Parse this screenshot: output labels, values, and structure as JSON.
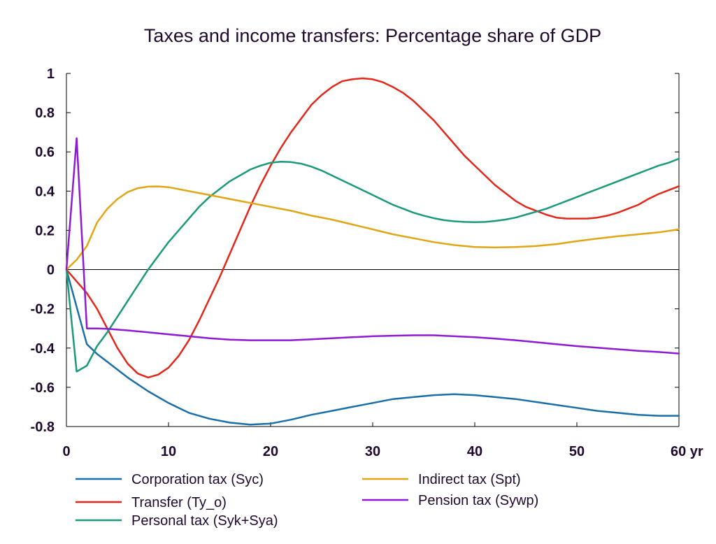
{
  "chart_data": {
    "type": "line",
    "title": "Taxes and income transfers: Percentage share of GDP",
    "xlabel": "",
    "ylabel": "",
    "xlim": [
      0,
      60
    ],
    "ylim": [
      -0.8,
      1.0
    ],
    "x_ticks": [
      0,
      10,
      20,
      30,
      40,
      50,
      60
    ],
    "x_tick_labels": [
      "0",
      "10",
      "20",
      "30",
      "40",
      "50",
      "60 yr"
    ],
    "y_ticks": [
      -0.8,
      -0.6,
      -0.4,
      -0.2,
      0,
      0.2,
      0.4,
      0.6,
      0.8,
      1.0
    ],
    "y_tick_labels": [
      "-0.8",
      "-0.6",
      "-0.4",
      "-0.2",
      "0",
      "0.2",
      "0.4",
      "0.6",
      "0.8",
      "1"
    ],
    "zero_line": true,
    "grid": false,
    "legend_position": "bottom",
    "series": [
      {
        "name": "Corporation tax (Syc)",
        "color": "#1b6fa8",
        "x": [
          0,
          1,
          2,
          3,
          4,
          6,
          8,
          10,
          12,
          14,
          16,
          18,
          20,
          22,
          24,
          26,
          28,
          30,
          32,
          34,
          36,
          38,
          40,
          42,
          44,
          46,
          48,
          50,
          52,
          54,
          56,
          58,
          60
        ],
        "values": [
          0,
          -0.19,
          -0.38,
          -0.43,
          -0.47,
          -0.55,
          -0.62,
          -0.68,
          -0.73,
          -0.76,
          -0.78,
          -0.79,
          -0.785,
          -0.765,
          -0.74,
          -0.72,
          -0.7,
          -0.68,
          -0.66,
          -0.65,
          -0.64,
          -0.635,
          -0.64,
          -0.65,
          -0.66,
          -0.675,
          -0.69,
          -0.705,
          -0.72,
          -0.73,
          -0.74,
          -0.745,
          -0.745
        ]
      },
      {
        "name": "Transfer (Ty_o)",
        "color": "#e3281b",
        "x": [
          0,
          2,
          3,
          4,
          5,
          6,
          7,
          8,
          9,
          10,
          11,
          12,
          13,
          14,
          15,
          16,
          17,
          18,
          19,
          20,
          21,
          22,
          23,
          24,
          25,
          26,
          27,
          28,
          29,
          30,
          31,
          32,
          33,
          34,
          35,
          36,
          37,
          38,
          39,
          40,
          41,
          42,
          43,
          44,
          45,
          46,
          47,
          48,
          49,
          50,
          51,
          52,
          53,
          54,
          55,
          56,
          57,
          58,
          59,
          60
        ],
        "values": [
          0,
          -0.12,
          -0.2,
          -0.3,
          -0.4,
          -0.48,
          -0.53,
          -0.55,
          -0.535,
          -0.5,
          -0.44,
          -0.36,
          -0.26,
          -0.15,
          -0.04,
          0.08,
          0.2,
          0.32,
          0.43,
          0.53,
          0.62,
          0.7,
          0.77,
          0.84,
          0.89,
          0.93,
          0.96,
          0.97,
          0.975,
          0.97,
          0.955,
          0.93,
          0.9,
          0.86,
          0.81,
          0.76,
          0.7,
          0.64,
          0.58,
          0.53,
          0.48,
          0.43,
          0.39,
          0.35,
          0.32,
          0.3,
          0.28,
          0.265,
          0.26,
          0.26,
          0.26,
          0.265,
          0.275,
          0.29,
          0.31,
          0.33,
          0.36,
          0.385,
          0.405,
          0.425
        ]
      },
      {
        "name": "Personal tax (Syk+Sya)",
        "color": "#1a9a7a",
        "x": [
          0,
          1,
          2,
          3,
          4,
          5,
          6,
          7,
          8,
          9,
          10,
          11,
          12,
          13,
          14,
          15,
          16,
          17,
          18,
          19,
          20,
          21,
          22,
          23,
          24,
          25,
          26,
          27,
          28,
          29,
          30,
          31,
          32,
          33,
          34,
          35,
          36,
          37,
          38,
          39,
          40,
          41,
          42,
          43,
          44,
          45,
          46,
          47,
          48,
          49,
          50,
          51,
          52,
          53,
          54,
          55,
          56,
          57,
          58,
          59,
          60
        ],
        "values": [
          0,
          -0.52,
          -0.49,
          -0.39,
          -0.32,
          -0.24,
          -0.16,
          -0.08,
          0,
          0.07,
          0.14,
          0.2,
          0.26,
          0.32,
          0.37,
          0.41,
          0.45,
          0.48,
          0.51,
          0.53,
          0.545,
          0.55,
          0.548,
          0.54,
          0.525,
          0.505,
          0.48,
          0.455,
          0.43,
          0.405,
          0.38,
          0.355,
          0.33,
          0.31,
          0.29,
          0.275,
          0.262,
          0.252,
          0.246,
          0.243,
          0.242,
          0.243,
          0.248,
          0.255,
          0.265,
          0.28,
          0.295,
          0.31,
          0.33,
          0.35,
          0.37,
          0.39,
          0.41,
          0.43,
          0.45,
          0.47,
          0.49,
          0.51,
          0.53,
          0.545,
          0.565
        ]
      },
      {
        "name": "Indirect tax (Spt)",
        "color": "#e0a615",
        "x": [
          0,
          1,
          2,
          3,
          4,
          5,
          6,
          7,
          8,
          9,
          10,
          11,
          12,
          14,
          16,
          18,
          20,
          22,
          24,
          26,
          28,
          30,
          32,
          34,
          36,
          38,
          40,
          42,
          44,
          46,
          48,
          50,
          52,
          54,
          56,
          58,
          60
        ],
        "values": [
          0,
          0.05,
          0.12,
          0.24,
          0.31,
          0.36,
          0.395,
          0.415,
          0.423,
          0.424,
          0.42,
          0.41,
          0.4,
          0.38,
          0.36,
          0.34,
          0.32,
          0.3,
          0.275,
          0.255,
          0.23,
          0.205,
          0.18,
          0.16,
          0.14,
          0.125,
          0.115,
          0.113,
          0.115,
          0.12,
          0.13,
          0.145,
          0.158,
          0.17,
          0.18,
          0.19,
          0.205
        ]
      },
      {
        "name": "Pension tax (Sywp)",
        "color": "#8e1bd3",
        "x": [
          0,
          1,
          2,
          3,
          4,
          6,
          8,
          10,
          12,
          14,
          16,
          18,
          20,
          22,
          24,
          26,
          28,
          30,
          32,
          34,
          36,
          38,
          40,
          42,
          44,
          46,
          48,
          50,
          52,
          54,
          56,
          58,
          60
        ],
        "values": [
          0,
          0.67,
          -0.3,
          -0.3,
          -0.302,
          -0.31,
          -0.32,
          -0.33,
          -0.34,
          -0.35,
          -0.357,
          -0.36,
          -0.36,
          -0.36,
          -0.355,
          -0.35,
          -0.345,
          -0.34,
          -0.337,
          -0.335,
          -0.335,
          -0.34,
          -0.345,
          -0.352,
          -0.36,
          -0.37,
          -0.38,
          -0.39,
          -0.398,
          -0.406,
          -0.414,
          -0.42,
          -0.428
        ]
      }
    ]
  }
}
